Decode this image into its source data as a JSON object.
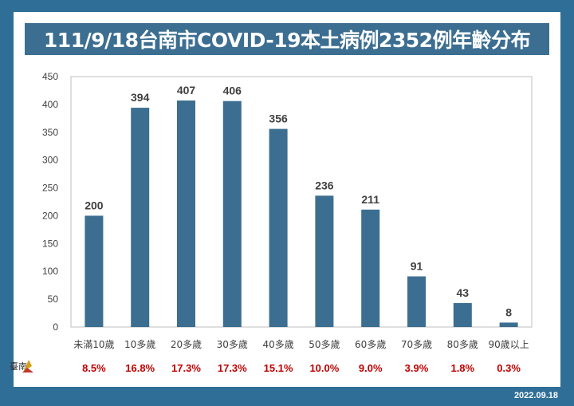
{
  "title": "111/9/18台南市COVID-19本土病例2352例年齡分布",
  "date": "2022.09.18",
  "logo_text": "臺南",
  "colors": {
    "bar": "#3c6e91",
    "pct": "#c00000",
    "frame": "#2f6e96"
  },
  "chart_data": {
    "type": "bar",
    "title": "111/9/18台南市COVID-19本土病例2352例年齡分布",
    "xlabel": "",
    "ylabel": "",
    "ylim": [
      0,
      450
    ],
    "yticks": [
      0,
      50,
      100,
      150,
      200,
      250,
      300,
      350,
      400,
      450
    ],
    "categories": [
      "未滿10歲",
      "10多歲",
      "20多歲",
      "30多歲",
      "40多歲",
      "50多歲",
      "60多歲",
      "70多歲",
      "80多歲",
      "90歲以上"
    ],
    "values": [
      200,
      394,
      407,
      406,
      356,
      236,
      211,
      91,
      43,
      8
    ],
    "percentages": [
      "8.5%",
      "16.8%",
      "17.3%",
      "17.3%",
      "15.1%",
      "10.0%",
      "9.0%",
      "3.9%",
      "1.8%",
      "0.3%"
    ],
    "grid": false
  }
}
